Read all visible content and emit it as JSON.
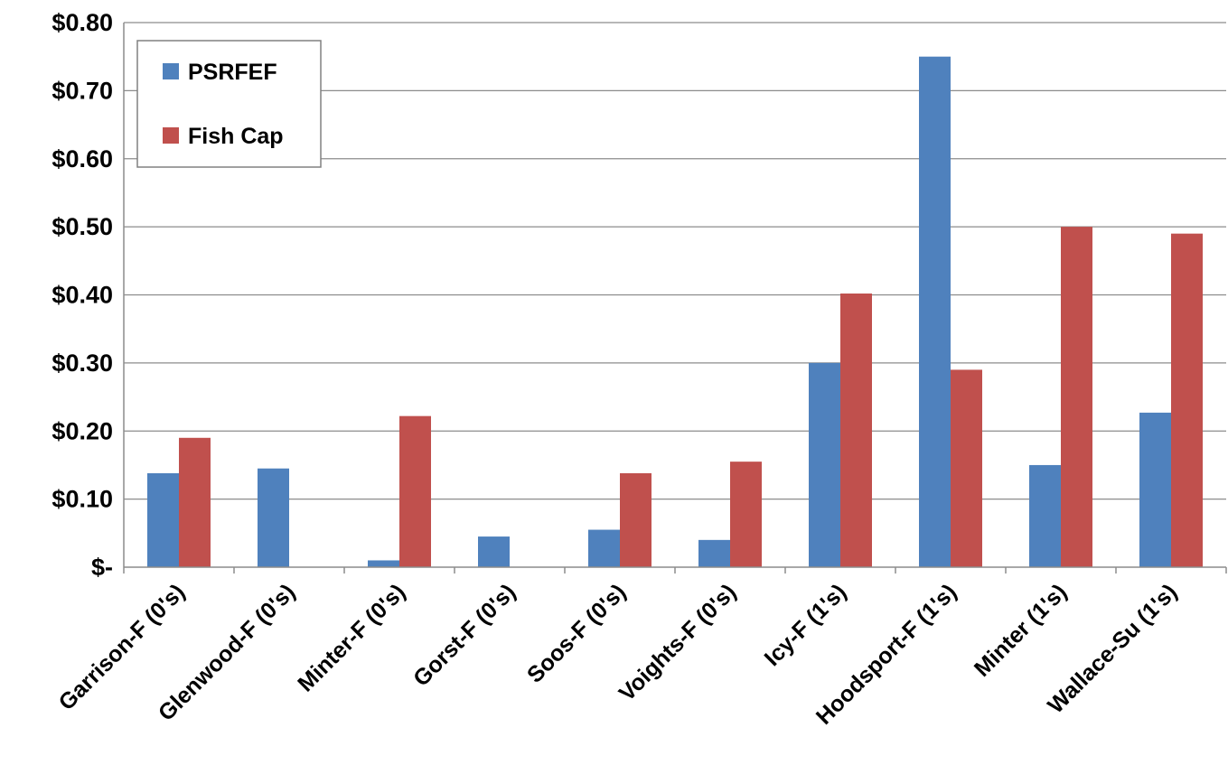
{
  "chart_data": {
    "type": "bar",
    "title": "",
    "xlabel": "",
    "ylabel": "",
    "ylim": [
      0,
      0.8
    ],
    "yticks": [
      0,
      0.1,
      0.2,
      0.3,
      0.4,
      0.5,
      0.6,
      0.7,
      0.8
    ],
    "ytick_labels": [
      "$-",
      "$0.10",
      "$0.20",
      "$0.30",
      "$0.40",
      "$0.50",
      "$0.60",
      "$0.70",
      "$0.80"
    ],
    "grid": true,
    "legend_position": "top-left",
    "categories": [
      "Garrison-F (0's)",
      "Glenwood-F (0's)",
      "Minter-F (0's)",
      "Gorst-F (0's)",
      "Soos-F (0's)",
      "Voights-F (0's)",
      "Icy-F (1's)",
      "Hoodsport-F (1's)",
      "Minter (1's)",
      "Wallace-Su (1's)"
    ],
    "series": [
      {
        "name": "PSRFEF",
        "color": "#4f81bd",
        "values": [
          0.138,
          0.145,
          0.01,
          0.045,
          0.055,
          0.04,
          0.3,
          0.75,
          0.15,
          0.227
        ]
      },
      {
        "name": "Fish Cap",
        "color": "#c0504d",
        "values": [
          0.19,
          0,
          0.222,
          0,
          0.138,
          0.155,
          0.402,
          0.29,
          0.5,
          0.49
        ]
      }
    ]
  }
}
